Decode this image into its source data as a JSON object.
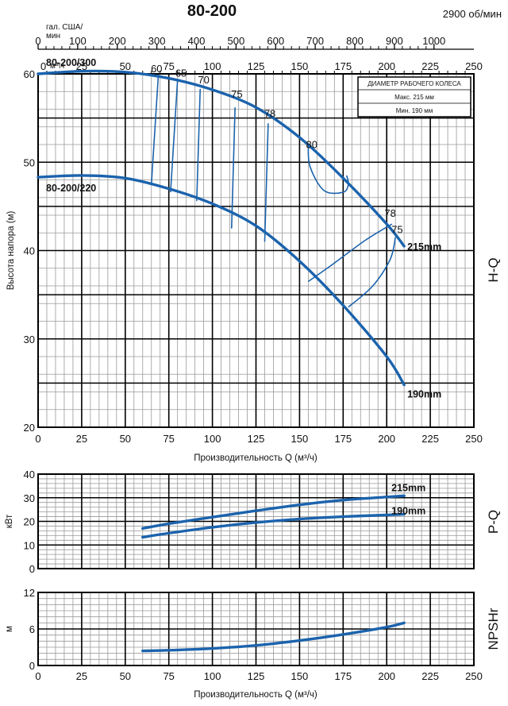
{
  "header": {
    "title": "80-200",
    "speed": "2900 об/мин"
  },
  "top_axes": {
    "gal_unit": "гал. США/\nмин",
    "gal_unit_line1": "гал. США/",
    "gal_unit_line2": "мин",
    "gal_ticks": [
      "0",
      "100",
      "200",
      "300",
      "400",
      "500",
      "600",
      "700",
      "800",
      "900",
      "1000"
    ],
    "m3_unit": "м³\\ч",
    "m3_ticks": [
      "0",
      "25",
      "50",
      "75",
      "100",
      "125",
      "150",
      "175",
      "200",
      "225",
      "250"
    ]
  },
  "legend_box": {
    "title": "ДИАМЕТР РАБОЧЕГО КОЛЕСА",
    "max": "Макс. 215 мм",
    "min": "Мин. 190 мм"
  },
  "colors": {
    "curve": "#1b63ad",
    "grid_minor": "#9a9a9a",
    "grid_major": "#000000"
  },
  "chart_data": [
    {
      "type": "line",
      "name": "H-Q",
      "side_label": "H-Q",
      "ylabel": "Высота напора (м)",
      "xlabel": "Производительность Q (м³/ч)",
      "xlim": [
        0,
        250
      ],
      "ylim": [
        20,
        60
      ],
      "y_ticks": [
        "20",
        "30",
        "40",
        "50",
        "60"
      ],
      "x_ticks": [
        "0",
        "25",
        "50",
        "75",
        "100",
        "125",
        "150",
        "175",
        "200",
        "225",
        "250"
      ],
      "series": [
        {
          "name": "215mm",
          "curve_label": "80-200/300",
          "x": [
            0,
            25,
            50,
            75,
            100,
            125,
            150,
            175,
            200,
            210
          ],
          "y": [
            60.0,
            60.3,
            60.2,
            59.5,
            58.2,
            56.2,
            52.8,
            48.2,
            43.0,
            40.5
          ]
        },
        {
          "name": "190mm",
          "curve_label": "80-200/220",
          "x": [
            0,
            25,
            50,
            75,
            100,
            125,
            150,
            175,
            200,
            210
          ],
          "y": [
            48.3,
            48.5,
            48.2,
            47.0,
            45.3,
            42.8,
            38.8,
            33.8,
            28.0,
            24.8
          ]
        }
      ],
      "efficiency_labels": [
        {
          "text": "60",
          "x": 68,
          "y": 60.2
        },
        {
          "text": "65",
          "x": 82,
          "y": 59.7
        },
        {
          "text": "70",
          "x": 95,
          "y": 58.9
        },
        {
          "text": "75",
          "x": 114,
          "y": 57.3
        },
        {
          "text": "78",
          "x": 133,
          "y": 55.1
        },
        {
          "text": "80",
          "x": 157,
          "y": 51.6
        },
        {
          "text": "78",
          "x": 202,
          "y": 43.8
        },
        {
          "text": "75",
          "x": 206,
          "y": 42.0
        }
      ],
      "efficiency_lines": [
        {
          "x": [
            69,
            65
          ],
          "y": [
            59.9,
            47.5
          ]
        },
        {
          "x": [
            80,
            76
          ],
          "y": [
            59.3,
            46.6
          ]
        },
        {
          "x": [
            93,
            91
          ],
          "y": [
            58.3,
            45.6
          ]
        },
        {
          "x": [
            113,
            111
          ],
          "y": [
            56.2,
            42.5
          ]
        },
        {
          "x": [
            132,
            130
          ],
          "y": [
            54.4,
            41.0
          ]
        },
        {
          "x": [
            155,
            156,
            164,
            175,
            178,
            177
          ],
          "y": [
            52.1,
            49.5,
            46.8,
            46.6,
            47.5,
            48.5
          ]
        },
        {
          "x": [
            203,
            188,
            168,
            155
          ],
          "y": [
            43.0,
            41.2,
            38.3,
            36.5
          ]
        },
        {
          "x": [
            205,
            202,
            192,
            178
          ],
          "y": [
            41.5,
            39.0,
            36.0,
            33.6
          ]
        }
      ]
    },
    {
      "type": "line",
      "name": "P-Q",
      "side_label": "P-Q",
      "ylabel": "кВт",
      "xlim": [
        0,
        250
      ],
      "ylim": [
        0,
        40
      ],
      "y_ticks": [
        "0",
        "10",
        "20",
        "30",
        "40"
      ],
      "series": [
        {
          "name": "215mm",
          "x": [
            60,
            75,
            100,
            125,
            150,
            175,
            200,
            210
          ],
          "y": [
            17.0,
            19.0,
            21.8,
            24.5,
            27.0,
            29.0,
            30.3,
            30.8
          ]
        },
        {
          "name": "190mm",
          "x": [
            60,
            75,
            100,
            125,
            150,
            175,
            200,
            210
          ],
          "y": [
            13.3,
            15.0,
            17.5,
            19.5,
            21.0,
            22.0,
            22.7,
            23.0
          ]
        }
      ]
    },
    {
      "type": "line",
      "name": "NPSHr",
      "side_label": "NPSHr",
      "ylabel": "м",
      "xlabel": "Производительность Q (м³/ч)",
      "xlim": [
        0,
        250
      ],
      "ylim": [
        0,
        12
      ],
      "y_ticks": [
        "0",
        "6",
        "12"
      ],
      "x_ticks": [
        "0",
        "25",
        "50",
        "75",
        "100",
        "125",
        "150",
        "175",
        "200",
        "225",
        "250"
      ],
      "series": [
        {
          "name": "",
          "x": [
            60,
            75,
            100,
            125,
            150,
            175,
            200,
            210
          ],
          "y": [
            2.4,
            2.5,
            2.8,
            3.3,
            4.1,
            5.1,
            6.3,
            7.0
          ]
        }
      ]
    }
  ]
}
